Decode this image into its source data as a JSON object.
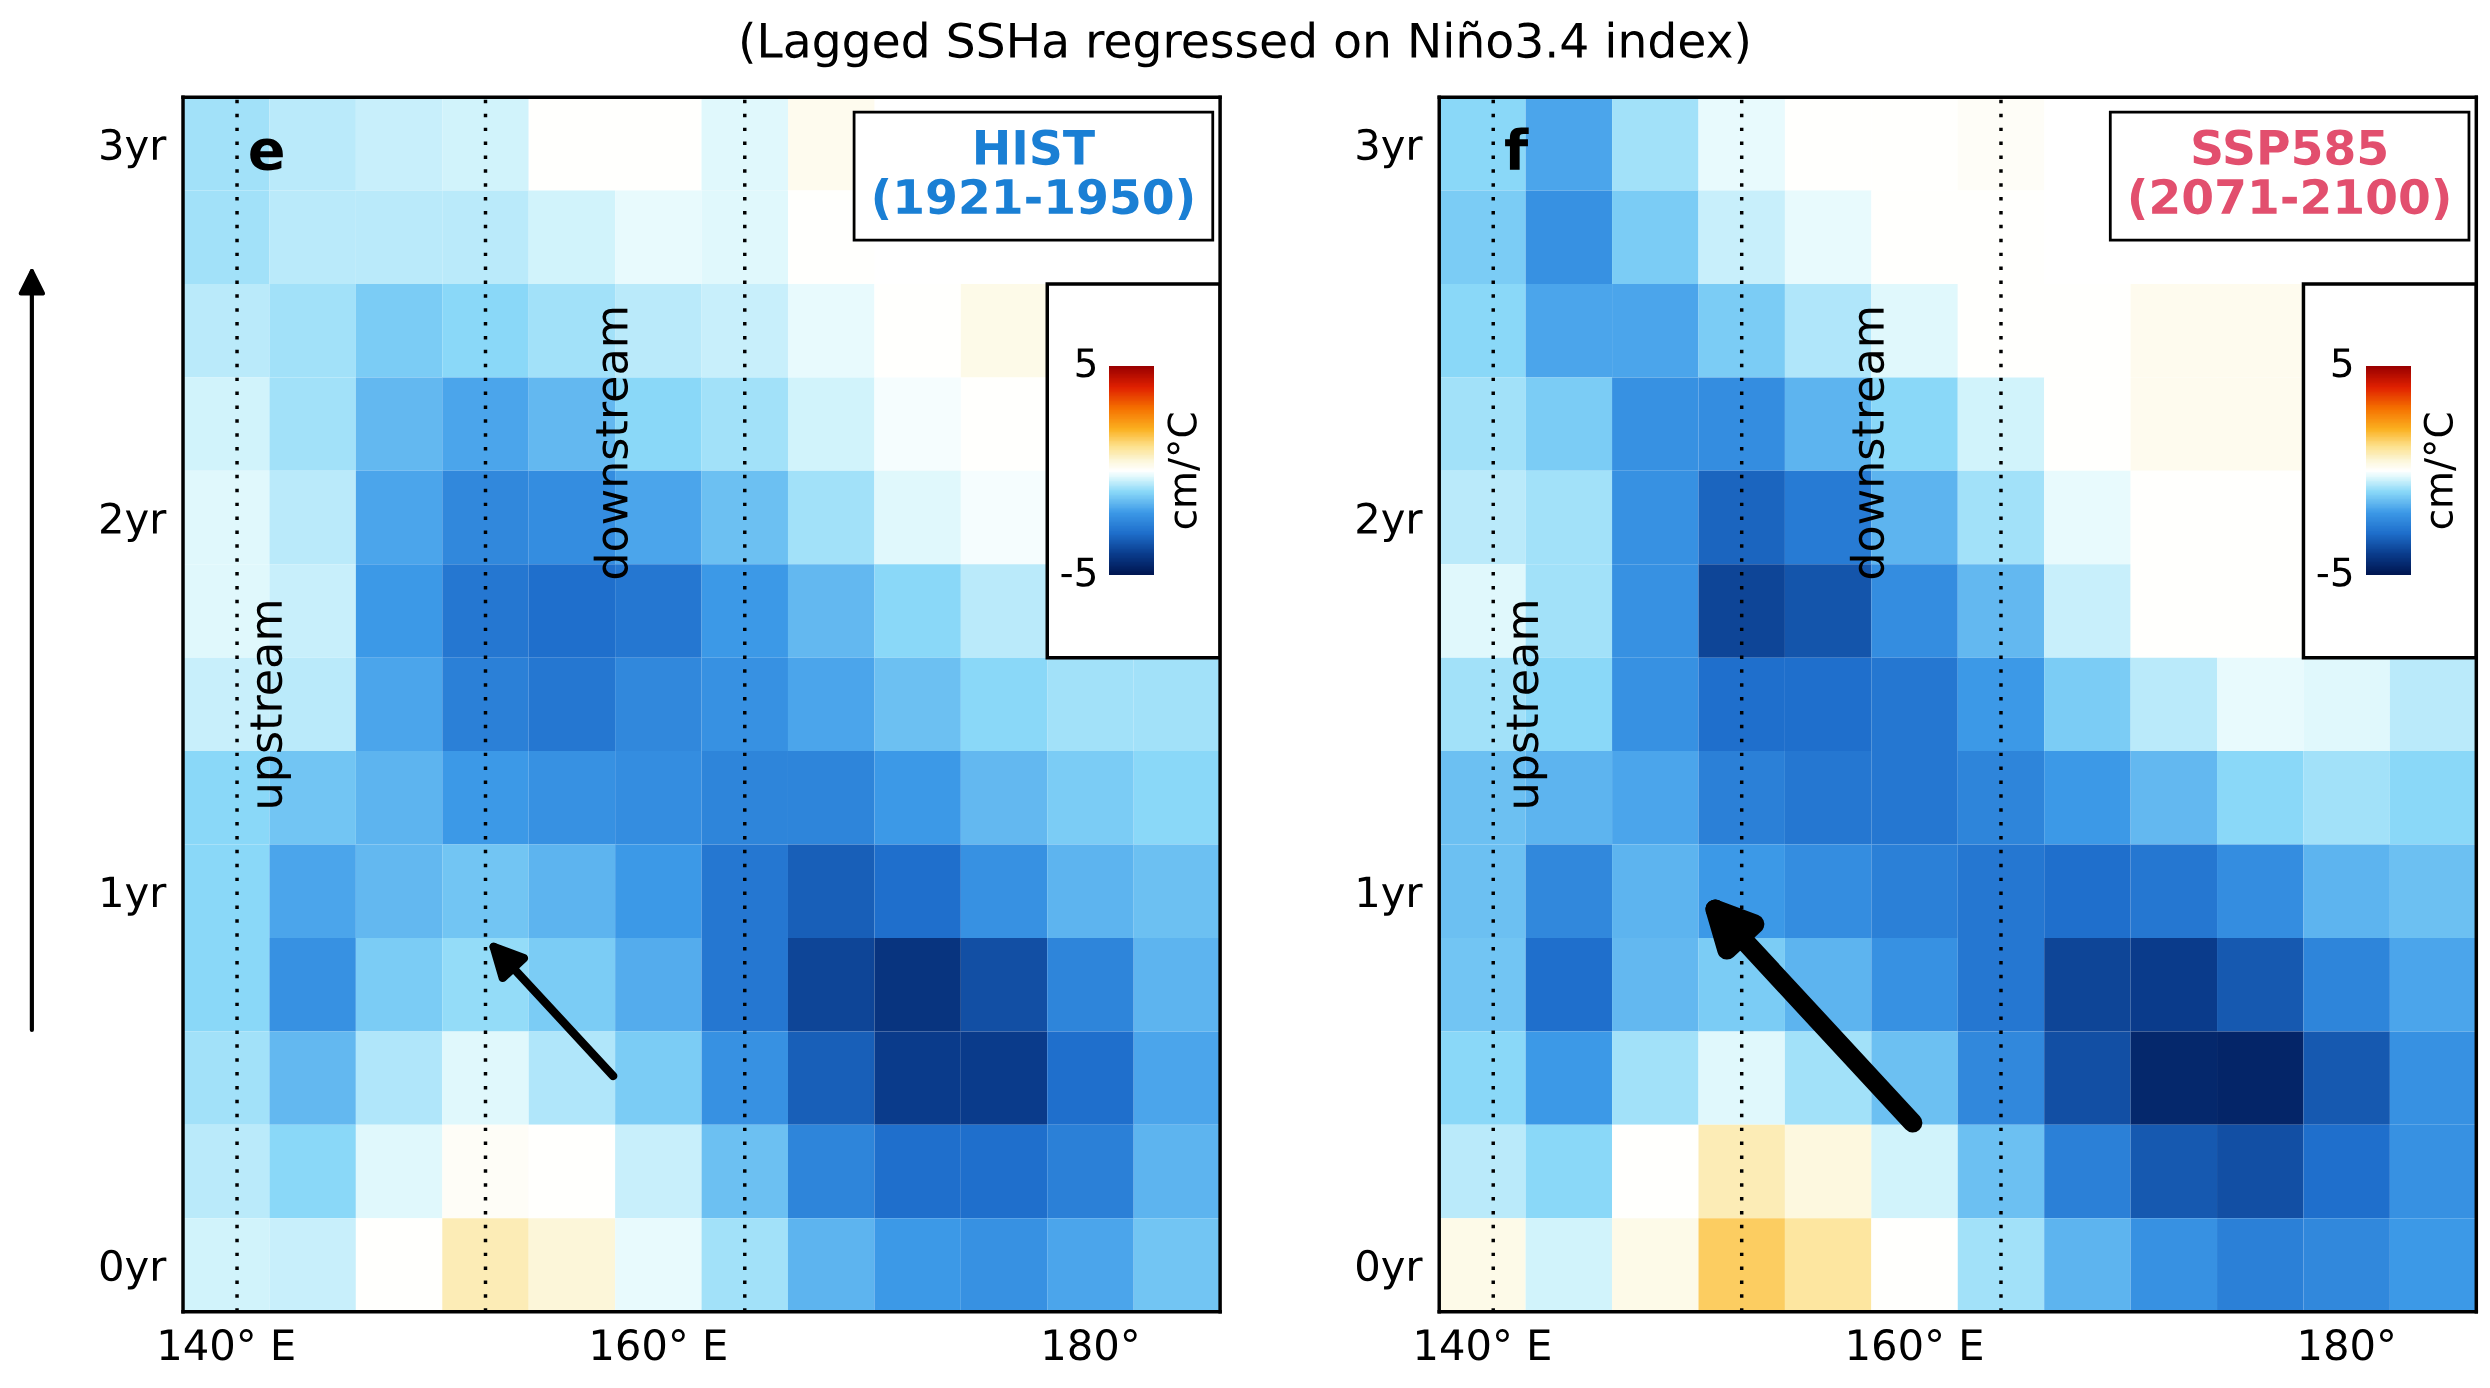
{
  "chart_data": [
    {
      "type": "heatmap",
      "title": "e",
      "subtitle": "HIST\n(1921-1950)",
      "annotations": [
        "upstream",
        "downstream",
        "(Lagged SSHa regressed on Niño3.4 index)"
      ],
      "x": [
        140,
        144,
        148,
        152,
        156,
        160,
        164,
        168,
        172,
        176,
        180,
        184
      ],
      "xlim": [
        138,
        186
      ],
      "xticks": [
        {
          "value": 140,
          "label": "140° E"
        },
        {
          "value": 160,
          "label": "160° E"
        },
        {
          "value": 180,
          "label": "180°"
        }
      ],
      "y_categories": [
        "3yr",
        null,
        null,
        null,
        "2yr",
        null,
        null,
        null,
        "1yr",
        null,
        null,
        null,
        "0yr"
      ],
      "cells": [
        [
          -0.8,
          -0.6,
          -0.5,
          -0.4,
          0,
          0,
          -0.3,
          0.2,
          null,
          null,
          null,
          null
        ],
        [
          -0.8,
          -0.6,
          -0.6,
          -0.6,
          -0.4,
          -0.2,
          -0.3,
          0,
          null,
          null,
          null,
          null
        ],
        [
          -0.6,
          -0.8,
          -1.2,
          -1.0,
          -0.8,
          -0.6,
          -0.5,
          -0.2,
          0,
          0.3,
          null,
          null
        ],
        [
          -0.4,
          -0.8,
          -1.5,
          -1.8,
          -1.5,
          -1.0,
          -0.8,
          -0.4,
          -0.1,
          0,
          null,
          null
        ],
        [
          -0.3,
          -0.6,
          -1.8,
          -2.4,
          -2.3,
          -1.8,
          -1.4,
          -0.8,
          -0.3,
          -0.1,
          null,
          null
        ],
        [
          -0.3,
          -0.5,
          -2.0,
          -2.8,
          -3.0,
          -2.8,
          -2.0,
          -1.5,
          -1.0,
          -0.6,
          null,
          null
        ],
        [
          -0.5,
          -0.6,
          -1.8,
          -2.6,
          -2.8,
          -2.4,
          -2.2,
          -1.8,
          -1.4,
          -1.0,
          -0.8,
          -0.8
        ],
        [
          -1.0,
          -1.3,
          -1.6,
          -2.0,
          -2.2,
          -2.3,
          -2.5,
          -2.5,
          -2.0,
          -1.5,
          -1.2,
          -1.0
        ],
        [
          -1.0,
          -1.8,
          -1.5,
          -1.3,
          -1.6,
          -2.0,
          -2.8,
          -3.3,
          -3.0,
          -2.2,
          -1.6,
          -1.4
        ],
        [
          -1.0,
          -2.2,
          -1.2,
          -0.9,
          -1.2,
          -1.7,
          -2.8,
          -3.8,
          -4.2,
          -3.6,
          -2.5,
          -1.6
        ],
        [
          -0.8,
          -1.5,
          -0.7,
          -0.3,
          -0.7,
          -1.2,
          -2.2,
          -3.3,
          -4.0,
          -4.0,
          -3.0,
          -1.8
        ],
        [
          -0.6,
          -1.0,
          -0.3,
          0.1,
          0,
          -0.5,
          -1.4,
          -2.5,
          -3.0,
          -3.0,
          -2.6,
          -1.6
        ],
        [
          -0.4,
          -0.5,
          0,
          0.8,
          0.5,
          -0.2,
          -0.8,
          -1.6,
          -2.0,
          -2.2,
          -1.8,
          -1.3
        ]
      ],
      "clim": [
        -5,
        5
      ],
      "cticks": [
        -5,
        5
      ],
      "clabel": "cm/°C",
      "ref_lines": [
        {
          "axis": "x",
          "value": 140.5,
          "color": "#000000",
          "line_style": "dotted"
        },
        {
          "axis": "x",
          "value": 152,
          "color": "#000000",
          "line_style": "dotted"
        },
        {
          "axis": "x",
          "value": 164,
          "color": "#000000",
          "line_style": "dotted"
        }
      ]
    },
    {
      "type": "heatmap",
      "title": "f",
      "subtitle": "SSP585\n(2071-2100)",
      "annotations": [
        "upstream",
        "downstream"
      ],
      "x": [
        140,
        144,
        148,
        152,
        156,
        160,
        164,
        168,
        172,
        176,
        180,
        184
      ],
      "xlim": [
        138,
        186
      ],
      "xticks": [
        {
          "value": 140,
          "label": "140° E"
        },
        {
          "value": 160,
          "label": "160° E"
        },
        {
          "value": 180,
          "label": "180°"
        }
      ],
      "y_categories": [
        "3yr",
        null,
        null,
        null,
        "2yr",
        null,
        null,
        null,
        "1yr",
        null,
        null,
        null,
        "0yr"
      ],
      "cells": [
        [
          -1.0,
          -1.8,
          -0.8,
          -0.2,
          0,
          0,
          0.1,
          null,
          null,
          null,
          null,
          null
        ],
        [
          -1.2,
          -2.2,
          -1.2,
          -0.5,
          -0.2,
          0,
          0,
          null,
          null,
          null,
          null,
          null
        ],
        [
          -1.0,
          -1.8,
          -1.8,
          -1.2,
          -0.7,
          -0.3,
          0,
          0,
          0.2,
          0.2,
          null,
          null
        ],
        [
          -0.8,
          -1.2,
          -2.2,
          -2.3,
          -1.6,
          -1.0,
          -0.4,
          0,
          0.2,
          0.2,
          null,
          null
        ],
        [
          -0.6,
          -0.8,
          -2.2,
          -3.2,
          -2.7,
          -1.6,
          -0.8,
          -0.2,
          0,
          0,
          null,
          null
        ],
        [
          -0.3,
          -0.8,
          -2.2,
          -3.8,
          -3.5,
          -2.3,
          -1.5,
          -0.5,
          0,
          0,
          null,
          null
        ],
        [
          -0.8,
          -1.0,
          -2.2,
          -3.0,
          -3.0,
          -2.8,
          -2.0,
          -1.2,
          -0.6,
          -0.2,
          -0.3,
          -0.6
        ],
        [
          -1.4,
          -1.6,
          -1.8,
          -2.6,
          -2.8,
          -2.8,
          -2.5,
          -2.0,
          -1.5,
          -1.0,
          -0.8,
          -1.0
        ],
        [
          -1.4,
          -2.4,
          -1.6,
          -2.0,
          -2.3,
          -2.6,
          -2.8,
          -3.0,
          -2.8,
          -2.3,
          -1.6,
          -1.4
        ],
        [
          -1.3,
          -3.0,
          -1.5,
          -1.2,
          -1.6,
          -2.2,
          -2.8,
          -3.8,
          -4.0,
          -3.4,
          -2.5,
          -1.8
        ],
        [
          -1.0,
          -2.0,
          -0.8,
          -0.3,
          -0.8,
          -1.4,
          -2.4,
          -3.6,
          -4.5,
          -4.6,
          -3.4,
          -2.2
        ],
        [
          -0.6,
          -1.0,
          0,
          0.8,
          0.4,
          -0.4,
          -1.4,
          -2.6,
          -3.4,
          -3.6,
          -3.0,
          -2.2
        ],
        [
          0.3,
          -0.4,
          0.3,
          1.5,
          1.0,
          0,
          -0.8,
          -1.6,
          -2.2,
          -2.6,
          -2.4,
          -2.0
        ]
      ],
      "clim": [
        -5,
        5
      ],
      "cticks": [
        -5,
        5
      ],
      "clabel": "cm/°C",
      "ref_lines": [
        {
          "axis": "x",
          "value": 140.5,
          "color": "#000000",
          "line_style": "dotted"
        },
        {
          "axis": "x",
          "value": 152,
          "color": "#000000",
          "line_style": "dotted"
        },
        {
          "axis": "x",
          "value": 164,
          "color": "#000000",
          "line_style": "dotted"
        }
      ]
    }
  ]
}
